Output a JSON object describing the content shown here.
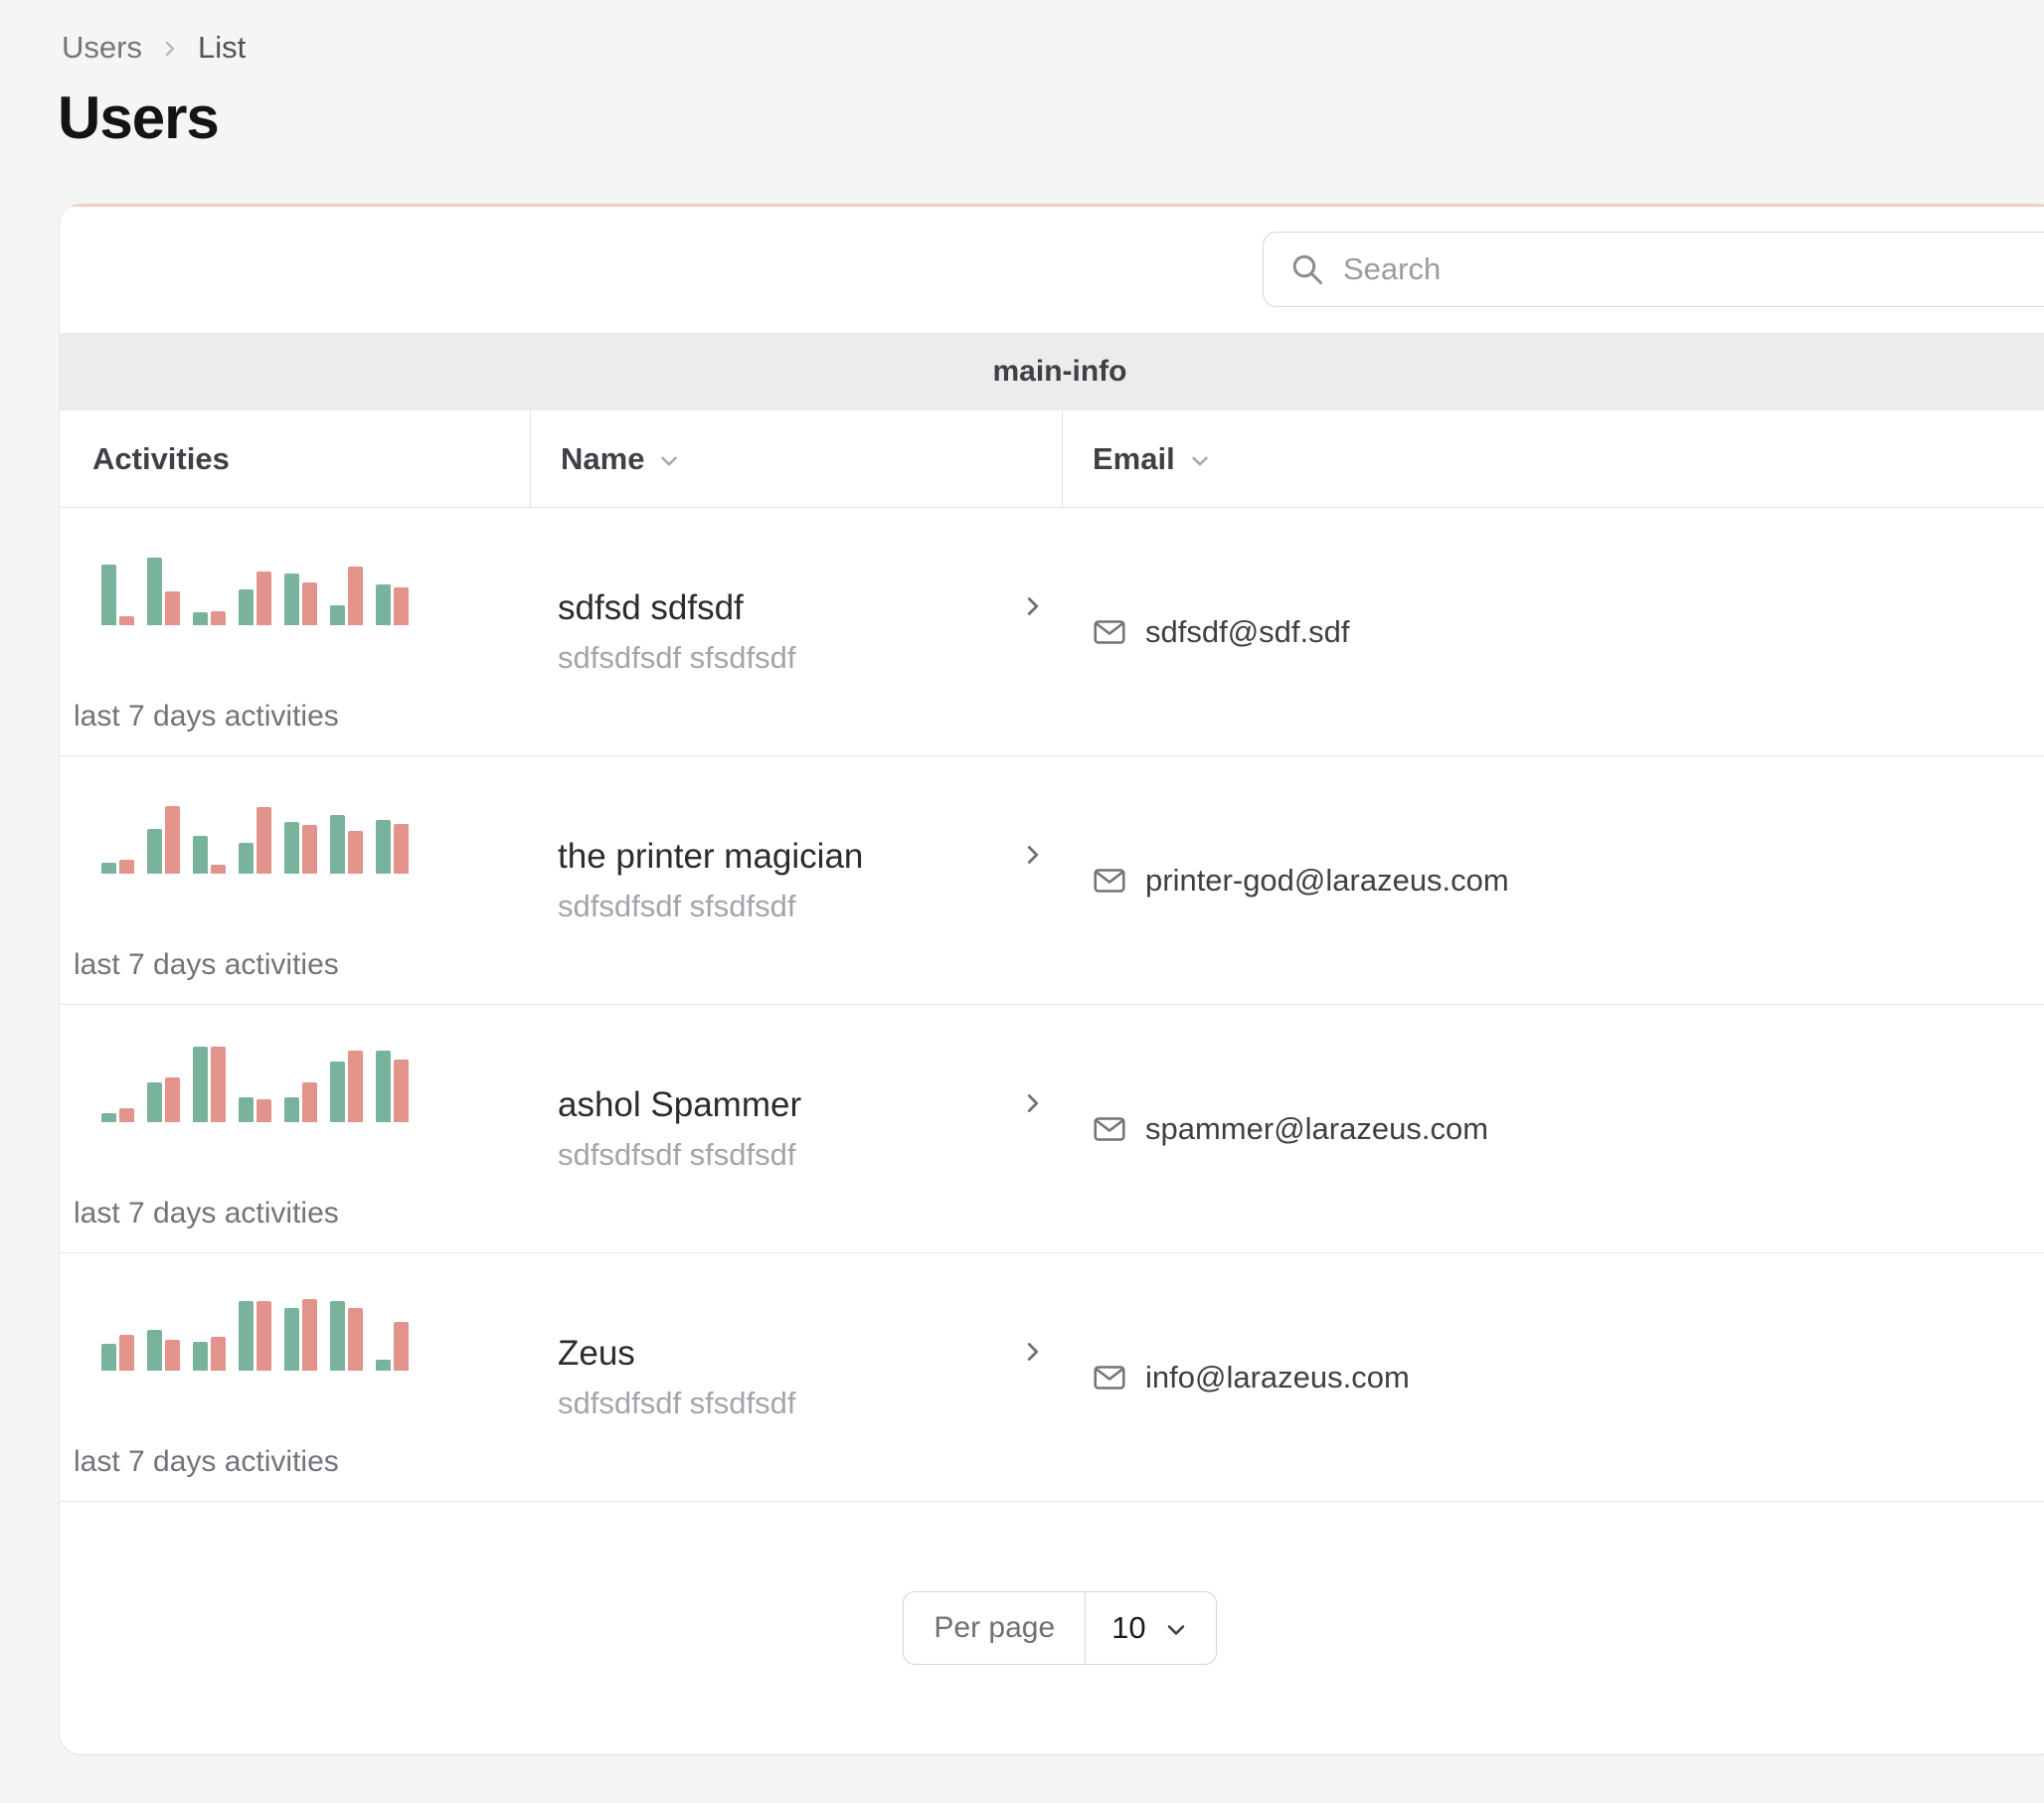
{
  "breadcrumb": {
    "items": [
      {
        "label": "Users"
      },
      {
        "label": "List"
      }
    ]
  },
  "page": {
    "title": "Users"
  },
  "toolbar": {
    "search_placeholder": "Search"
  },
  "table": {
    "group_label": "main-info",
    "columns": [
      {
        "label": "Activities",
        "sortable": false
      },
      {
        "label": "Name",
        "sortable": true
      },
      {
        "label": "Email",
        "sortable": true
      }
    ],
    "rows": [
      {
        "name": "sdfsd sdfsdf",
        "subtitle": "sdfsdfsdf sfsdfsdf",
        "email": "sdfsdf@sdf.sdf",
        "chart_caption": "last 7 days activities",
        "activity": {
          "green": [
            68,
            75,
            14,
            40,
            58,
            22,
            45
          ],
          "red": [
            10,
            38,
            16,
            60,
            48,
            66,
            42
          ]
        }
      },
      {
        "name": "the printer magician",
        "subtitle": "sdfsdfsdf sfsdfsdf",
        "email": "printer-god@larazeus.com",
        "chart_caption": "last 7 days activities",
        "activity": {
          "green": [
            12,
            50,
            42,
            34,
            58,
            66,
            60
          ],
          "red": [
            15,
            76,
            10,
            74,
            54,
            48,
            55
          ]
        }
      },
      {
        "name": "ashol Spammer",
        "subtitle": "sdfsdfsdf sfsdfsdf",
        "email": "spammer@larazeus.com",
        "chart_caption": "last 7 days activities",
        "activity": {
          "green": [
            10,
            44,
            84,
            28,
            28,
            68,
            80
          ],
          "red": [
            16,
            50,
            84,
            25,
            44,
            80,
            70
          ]
        }
      },
      {
        "name": "Zeus",
        "subtitle": "sdfsdfsdf sfsdfsdf",
        "email": "info@larazeus.com",
        "chart_caption": "last 7 days activities",
        "activity": {
          "green": [
            30,
            45,
            32,
            78,
            70,
            78,
            12
          ],
          "red": [
            40,
            34,
            38,
            78,
            80,
            70,
            54
          ]
        }
      }
    ]
  },
  "pagination": {
    "per_page_label": "Per page",
    "per_page_value": "10"
  },
  "colors": {
    "chart_green": "#79b39c",
    "chart_red": "#e2938b",
    "accent_line": "#f2cfc5"
  }
}
